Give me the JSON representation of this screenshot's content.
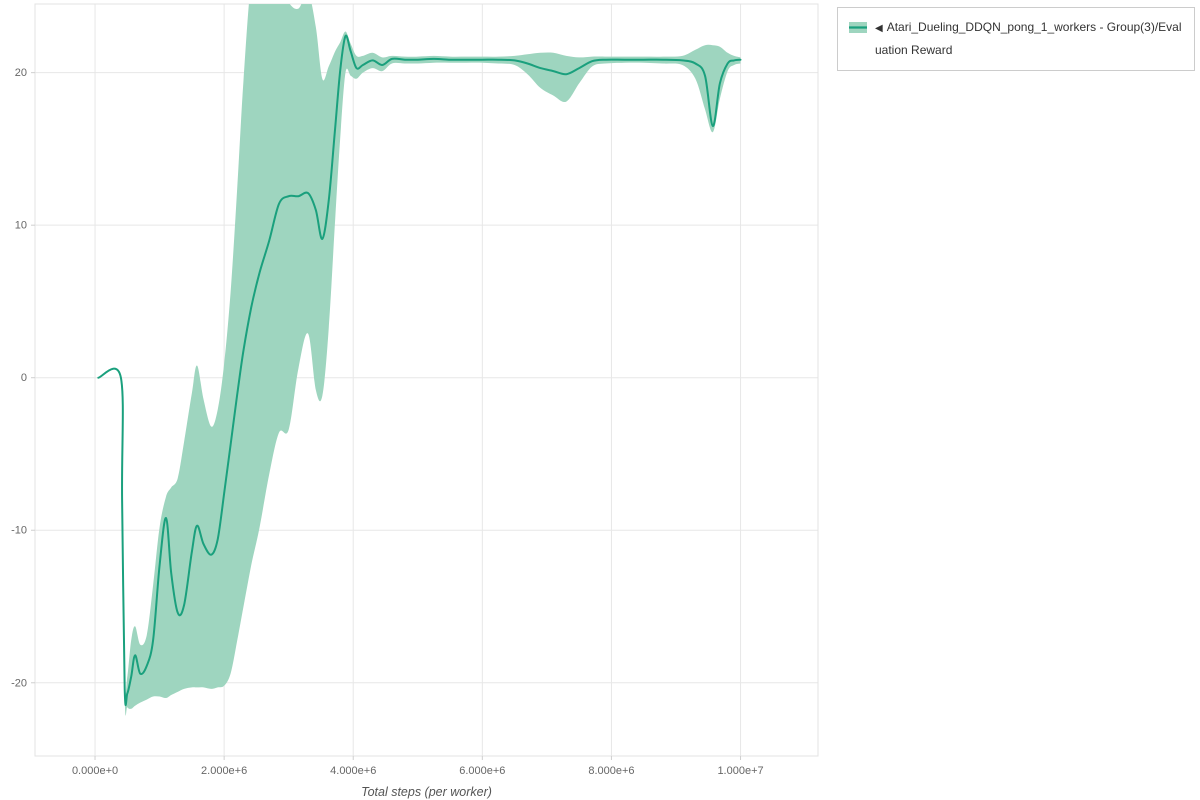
{
  "page": {
    "background": "#ffffff"
  },
  "legend": {
    "collapse_icon": "◀",
    "label": "Atari_Dueling_DDQN_pong_1_workers - Group(3)/Evaluation Reward",
    "swatch_color": "#1aa07d",
    "swatch_fill": "#9ed5bf"
  },
  "chart_data": {
    "type": "line",
    "title": "",
    "xlabel": "Total steps (per worker)",
    "ylabel": "",
    "xlim": [
      -930000,
      11200000
    ],
    "ylim": [
      -24.8,
      24.5
    ],
    "grid": true,
    "grid_color": "#e7e7e7",
    "border_color": "#e3e3e3",
    "tick_color": "#cfcfcf",
    "legend_position": "top-right-outside",
    "x_ticks": [
      {
        "value": 0,
        "label": "0.000e+0"
      },
      {
        "value": 2000000,
        "label": "2.000e+6"
      },
      {
        "value": 4000000,
        "label": "4.000e+6"
      },
      {
        "value": 6000000,
        "label": "6.000e+6"
      },
      {
        "value": 8000000,
        "label": "8.000e+6"
      },
      {
        "value": 10000000,
        "label": "1.000e+7"
      }
    ],
    "y_ticks": [
      {
        "value": -20,
        "label": "-20"
      },
      {
        "value": -10,
        "label": "-10"
      },
      {
        "value": 0,
        "label": "0"
      },
      {
        "value": 10,
        "label": "10"
      },
      {
        "value": 20,
        "label": "20"
      }
    ],
    "series": [
      {
        "name": "Atari_Dueling_DDQN_pong_1_workers - Group(3)/Evaluation Reward",
        "color": "#1aa07d",
        "band_color": "#9ed5bf",
        "x": [
          50000,
          400000,
          420000,
          460000,
          500000,
          560000,
          620000,
          700000,
          800000,
          900000,
          1000000,
          1100000,
          1180000,
          1280000,
          1380000,
          1500000,
          1580000,
          1680000,
          1800000,
          1900000,
          2000000,
          2100000,
          2200000,
          2300000,
          2420000,
          2550000,
          2700000,
          2850000,
          3000000,
          3150000,
          3300000,
          3420000,
          3520000,
          3620000,
          3720000,
          3800000,
          3880000,
          3960000,
          4050000,
          4150000,
          4300000,
          4450000,
          4600000,
          4800000,
          5000000,
          5250000,
          5500000,
          5750000,
          6000000,
          6250000,
          6500000,
          6700000,
          6900000,
          7100000,
          7300000,
          7500000,
          7700000,
          7900000,
          8200000,
          8500000,
          8800000,
          9100000,
          9300000,
          9450000,
          9570000,
          9680000,
          9800000,
          9900000,
          10000000
        ],
        "mean": [
          0,
          0,
          -8,
          -20.4,
          -20.7,
          -19.6,
          -18.2,
          -19.4,
          -18.9,
          -17.2,
          -12.3,
          -9.2,
          -12.8,
          -15.4,
          -14.9,
          -11.4,
          -9.7,
          -10.9,
          -11.6,
          -10.6,
          -7.6,
          -4.4,
          -1.2,
          1.8,
          4.6,
          6.9,
          9.0,
          11.4,
          11.9,
          11.9,
          12.1,
          11.0,
          9.1,
          11.6,
          16.4,
          20.2,
          22.4,
          21.4,
          20.3,
          20.5,
          20.8,
          20.5,
          20.9,
          20.85,
          20.85,
          20.9,
          20.85,
          20.85,
          20.85,
          20.85,
          20.8,
          20.6,
          20.3,
          20.1,
          19.9,
          20.3,
          20.75,
          20.85,
          20.85,
          20.85,
          20.85,
          20.8,
          20.6,
          19.8,
          16.5,
          19.3,
          20.6,
          20.8,
          20.85
        ],
        "lower": [
          0,
          0,
          -8,
          -21.0,
          -21.6,
          -21.7,
          -21.5,
          -21.3,
          -21.1,
          -20.9,
          -20.9,
          -21.0,
          -20.8,
          -20.6,
          -20.4,
          -20.3,
          -20.3,
          -20.3,
          -20.4,
          -20.3,
          -20.2,
          -19.4,
          -17.3,
          -15.0,
          -12.3,
          -9.8,
          -6.3,
          -3.6,
          -3.4,
          0.6,
          2.9,
          -0.8,
          -1.2,
          3.2,
          10.4,
          15.8,
          20.0,
          19.8,
          19.6,
          20.0,
          20.3,
          20.1,
          20.6,
          20.6,
          20.6,
          20.65,
          20.65,
          20.65,
          20.65,
          20.6,
          20.5,
          19.9,
          19.0,
          18.5,
          18.1,
          19.3,
          20.4,
          20.6,
          20.65,
          20.65,
          20.6,
          20.5,
          19.6,
          17.6,
          16.1,
          18.3,
          20.1,
          20.5,
          20.6
        ],
        "upper": [
          0,
          0,
          -8,
          -19.8,
          -19.6,
          -17.2,
          -16.3,
          -17.5,
          -16.9,
          -13.6,
          -9.8,
          -7.8,
          -7.2,
          -6.6,
          -4.2,
          -1.0,
          0.8,
          -1.4,
          -3.2,
          -2.1,
          0.9,
          5.6,
          12.2,
          19.5,
          26.0,
          27.0,
          27.0,
          26.0,
          24.6,
          24.2,
          25.2,
          23.0,
          19.6,
          20.4,
          21.4,
          22.0,
          22.7,
          21.9,
          21.1,
          21.1,
          21.3,
          21.0,
          21.1,
          21.05,
          21.05,
          21.1,
          21.05,
          21.05,
          21.05,
          21.05,
          21.1,
          21.2,
          21.3,
          21.3,
          21.1,
          21.0,
          21.05,
          21.05,
          21.05,
          21.05,
          21.05,
          21.1,
          21.5,
          21.8,
          21.8,
          21.7,
          21.3,
          21.1,
          21.0
        ]
      }
    ]
  }
}
